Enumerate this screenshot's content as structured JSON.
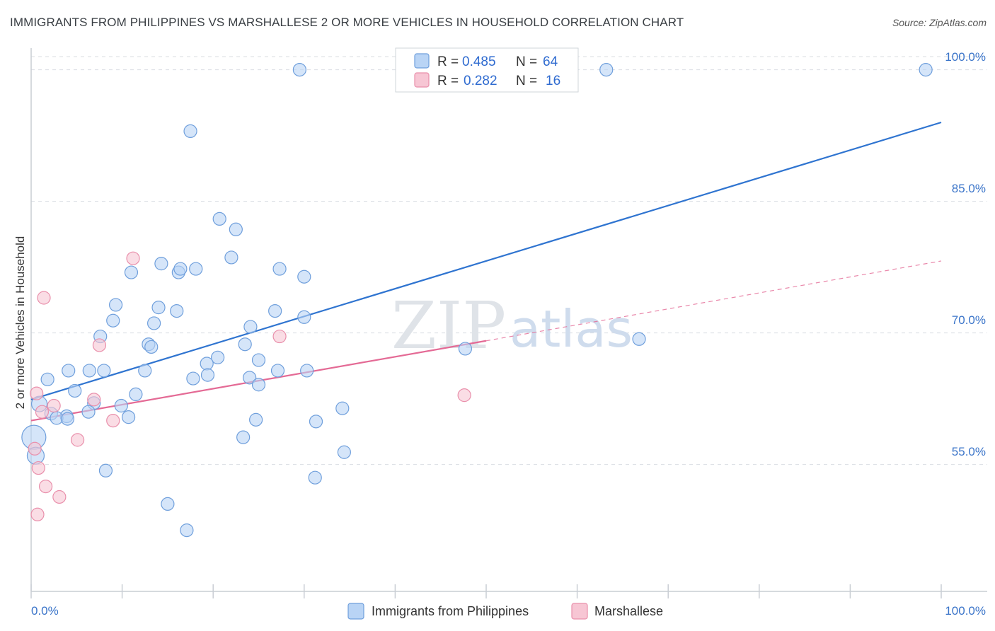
{
  "header": {
    "title": "IMMIGRANTS FROM PHILIPPINES VS MARSHALLESE 2 OR MORE VEHICLES IN HOUSEHOLD CORRELATION CHART",
    "source": "Source: ZipAtlas.com"
  },
  "watermark": {
    "zip": "ZIP",
    "atlas": "atlas"
  },
  "colors": {
    "blue_fill": "#b9d4f5",
    "blue_stroke": "#6f9fdc",
    "blue_line": "#2f74d0",
    "pink_fill": "#f7c6d4",
    "pink_stroke": "#e98fab",
    "pink_line": "#e46a95",
    "tick_text": "#3a74c9",
    "grid": "#d9dde2"
  },
  "chart_data": {
    "type": "scatter",
    "title": "IMMIGRANTS FROM PHILIPPINES VS MARSHALLESE 2 OR MORE VEHICLES IN HOUSEHOLD CORRELATION CHART",
    "xlabel": "",
    "ylabel": "2 or more Vehicles in Household",
    "xlim": [
      0,
      100
    ],
    "ylim": [
      40,
      100
    ],
    "x_tick_labels": [
      "0.0%",
      "100.0%"
    ],
    "y_ticks": [
      55,
      70,
      85,
      100
    ],
    "y_tick_labels": [
      "55.0%",
      "70.0%",
      "85.0%",
      "100.0%"
    ],
    "grid": true,
    "legend_position": "top-center",
    "stats": [
      {
        "r_label": "R =",
        "r": "0.485",
        "n_label": "N =",
        "n": "64"
      },
      {
        "r_label": "R =",
        "r": "0.282",
        "n_label": "N =",
        "n": "16"
      }
    ],
    "series": [
      {
        "name": "Immigrants from Philippines",
        "color": "#b9d4f5",
        "trend": {
          "x": [
            0,
            100
          ],
          "y": [
            60.9,
            92.5
          ],
          "solid_until": 100
        },
        "points": [
          [
            29.5,
            98.5
          ],
          [
            63.2,
            98.5
          ],
          [
            98.3,
            98.5
          ],
          [
            17.5,
            91.5
          ],
          [
            20.7,
            81.5
          ],
          [
            22.5,
            80.3
          ],
          [
            22.0,
            77.1
          ],
          [
            14.3,
            76.4
          ],
          [
            11.0,
            75.4
          ],
          [
            16.2,
            75.4
          ],
          [
            16.4,
            75.8
          ],
          [
            18.1,
            75.8
          ],
          [
            27.3,
            75.8
          ],
          [
            30.0,
            74.9
          ],
          [
            9.3,
            71.7
          ],
          [
            14.0,
            71.4
          ],
          [
            16.0,
            71.0
          ],
          [
            26.8,
            71.0
          ],
          [
            9.0,
            69.9
          ],
          [
            13.5,
            69.6
          ],
          [
            30.0,
            70.3
          ],
          [
            7.6,
            68.1
          ],
          [
            12.9,
            67.2
          ],
          [
            13.2,
            66.9
          ],
          [
            23.5,
            67.2
          ],
          [
            47.7,
            66.7
          ],
          [
            20.5,
            65.7
          ],
          [
            19.3,
            65.0
          ],
          [
            25.0,
            65.4
          ],
          [
            30.3,
            64.2
          ],
          [
            27.1,
            64.2
          ],
          [
            8.0,
            64.2
          ],
          [
            4.1,
            64.2
          ],
          [
            6.4,
            64.2
          ],
          [
            12.5,
            64.2
          ],
          [
            19.4,
            63.7
          ],
          [
            24.0,
            63.4
          ],
          [
            17.8,
            63.3
          ],
          [
            1.8,
            63.2
          ],
          [
            25.0,
            62.6
          ],
          [
            4.8,
            61.9
          ],
          [
            11.5,
            61.5
          ],
          [
            6.9,
            60.5
          ],
          [
            9.9,
            60.2
          ],
          [
            0.9,
            60.4
          ],
          [
            34.2,
            59.9
          ],
          [
            6.3,
            59.5
          ],
          [
            2.2,
            59.3
          ],
          [
            3.9,
            59.0
          ],
          [
            2.8,
            58.8
          ],
          [
            10.7,
            58.9
          ],
          [
            4.0,
            58.7
          ],
          [
            24.7,
            58.6
          ],
          [
            31.3,
            58.4
          ],
          [
            23.3,
            56.6
          ],
          [
            34.4,
            54.9
          ],
          [
            0.3,
            56.6
          ],
          [
            0.5,
            54.5
          ],
          [
            8.2,
            52.8
          ],
          [
            31.2,
            52.0
          ],
          [
            15.0,
            49.0
          ],
          [
            17.1,
            46.0
          ],
          [
            24.1,
            69.2
          ],
          [
            66.8,
            67.8
          ]
        ]
      },
      {
        "name": "Marshallese",
        "color": "#f7c6d4",
        "trend": {
          "x": [
            0,
            100
          ],
          "y": [
            58.5,
            76.7
          ],
          "solid_until": 50
        },
        "points": [
          [
            1.4,
            72.5
          ],
          [
            11.2,
            77.0
          ],
          [
            27.3,
            68.1
          ],
          [
            7.5,
            67.1
          ],
          [
            0.6,
            61.6
          ],
          [
            47.6,
            61.4
          ],
          [
            6.9,
            60.9
          ],
          [
            2.5,
            60.2
          ],
          [
            1.2,
            59.5
          ],
          [
            9.0,
            58.5
          ],
          [
            5.1,
            56.3
          ],
          [
            0.4,
            55.3
          ],
          [
            0.8,
            53.1
          ],
          [
            1.6,
            51.0
          ],
          [
            3.1,
            49.8
          ],
          [
            0.7,
            47.8
          ]
        ]
      }
    ]
  }
}
